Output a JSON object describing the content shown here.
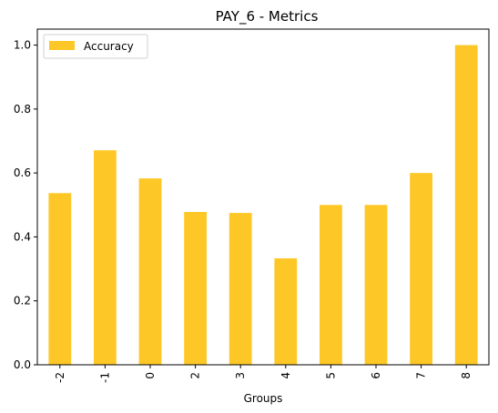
{
  "chart_data": {
    "type": "bar",
    "title": "PAY_6 - Metrics",
    "xlabel": "Groups",
    "ylabel": "",
    "categories": [
      "-2",
      "-1",
      "0",
      "2",
      "3",
      "4",
      "5",
      "6",
      "7",
      "8"
    ],
    "series": [
      {
        "name": "Accuracy",
        "color": "#fdc827",
        "values": [
          0.537,
          0.671,
          0.583,
          0.478,
          0.475,
          0.333,
          0.5,
          0.5,
          0.6,
          1.0
        ]
      }
    ],
    "ylim": [
      0,
      1.05
    ],
    "yticks": [
      "0.0",
      "0.2",
      "0.4",
      "0.6",
      "0.8",
      "1.0"
    ],
    "ytick_values": [
      0,
      0.2,
      0.4,
      0.6,
      0.8,
      1.0
    ],
    "grid": false,
    "legend_position": "top-left"
  }
}
